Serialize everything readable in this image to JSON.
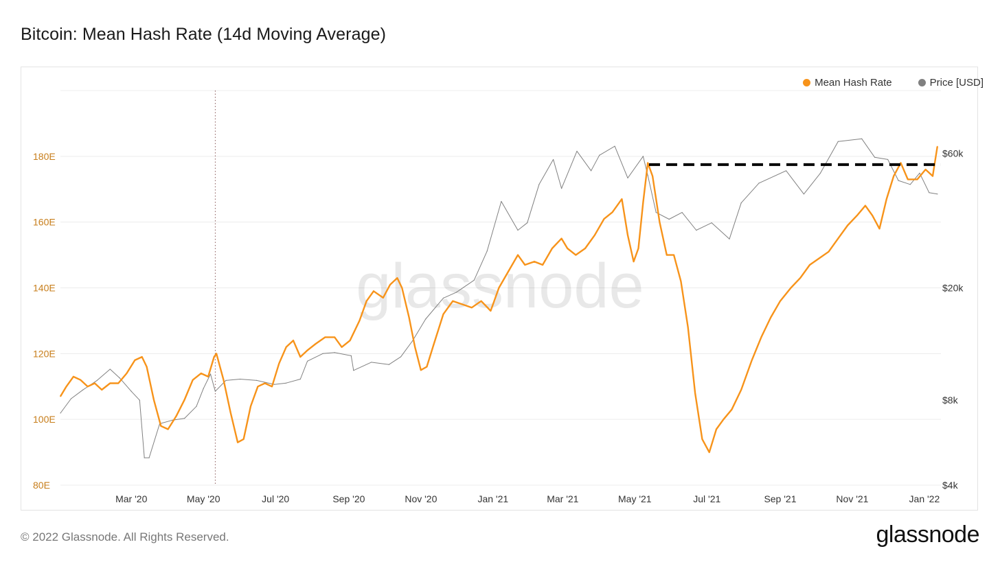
{
  "title": "Bitcoin: Mean Hash Rate (14d Moving Average)",
  "footer": "© 2022 Glassnode. All Rights Reserved.",
  "brand": "glassnode",
  "watermark": "glassnode",
  "colors": {
    "hash": "#f7931a",
    "price": "#808080",
    "left_axis_text": "#c77d1a",
    "grid": "#ececec"
  },
  "legend": [
    {
      "label": "Mean Hash Rate",
      "color": "#f7931a"
    },
    {
      "label": "Price [USD]",
      "color": "#808080"
    }
  ],
  "chart_data": {
    "type": "line",
    "title": "Bitcoin: Mean Hash Rate (14d Moving Average)",
    "legend_position": "top-right",
    "grid": true,
    "x_range": [
      "2020-01-01",
      "2022-01-15"
    ],
    "x_ticks": [
      {
        "date": "2020-03-01",
        "label": "Mar '20"
      },
      {
        "date": "2020-05-01",
        "label": "May '20"
      },
      {
        "date": "2020-07-01",
        "label": "Jul '20"
      },
      {
        "date": "2020-09-01",
        "label": "Sep '20"
      },
      {
        "date": "2020-11-01",
        "label": "Nov '20"
      },
      {
        "date": "2021-01-01",
        "label": "Jan '21"
      },
      {
        "date": "2021-03-01",
        "label": "Mar '21"
      },
      {
        "date": "2021-05-01",
        "label": "May '21"
      },
      {
        "date": "2021-07-01",
        "label": "Jul '21"
      },
      {
        "date": "2021-09-01",
        "label": "Sep '21"
      },
      {
        "date": "2021-11-01",
        "label": "Nov '21"
      },
      {
        "date": "2022-01-01",
        "label": "Jan '22"
      }
    ],
    "y_left": {
      "unit": "E",
      "range": [
        80,
        200
      ],
      "ticks": [
        {
          "value": 80,
          "label": "80E"
        },
        {
          "value": 100,
          "label": "100E"
        },
        {
          "value": 120,
          "label": "120E"
        },
        {
          "value": 140,
          "label": "140E"
        },
        {
          "value": 160,
          "label": "160E"
        },
        {
          "value": 180,
          "label": "180E"
        }
      ]
    },
    "y_right": {
      "scale": "log",
      "range": [
        4000,
        100000
      ],
      "ticks": [
        {
          "value": 4000,
          "label": "$4k"
        },
        {
          "value": 8000,
          "label": "$8k"
        },
        {
          "value": 20000,
          "label": "$20k"
        },
        {
          "value": 60000,
          "label": "$60k"
        }
      ]
    },
    "annotations": [
      {
        "type": "vertical-dotted-line",
        "date": "2020-05-11"
      },
      {
        "type": "horizontal-dashed-line",
        "from": "2021-05-13",
        "to": "2022-01-15",
        "value": 177.5
      }
    ],
    "series": [
      {
        "name": "Mean Hash Rate",
        "axis": "left",
        "points": [
          [
            "2020-01-01",
            107
          ],
          [
            "2020-01-06",
            110
          ],
          [
            "2020-01-12",
            113
          ],
          [
            "2020-01-18",
            112
          ],
          [
            "2020-01-24",
            110
          ],
          [
            "2020-01-30",
            111
          ],
          [
            "2020-02-05",
            109
          ],
          [
            "2020-02-12",
            111
          ],
          [
            "2020-02-19",
            111
          ],
          [
            "2020-02-26",
            114
          ],
          [
            "2020-03-04",
            118
          ],
          [
            "2020-03-10",
            119
          ],
          [
            "2020-03-14",
            116
          ],
          [
            "2020-03-20",
            106
          ],
          [
            "2020-03-26",
            98
          ],
          [
            "2020-04-01",
            97
          ],
          [
            "2020-04-08",
            101
          ],
          [
            "2020-04-15",
            106
          ],
          [
            "2020-04-22",
            112
          ],
          [
            "2020-04-29",
            114
          ],
          [
            "2020-05-05",
            113
          ],
          [
            "2020-05-10",
            119
          ],
          [
            "2020-05-12",
            120
          ],
          [
            "2020-05-18",
            112
          ],
          [
            "2020-05-24",
            102
          ],
          [
            "2020-05-30",
            93
          ],
          [
            "2020-06-04",
            94
          ],
          [
            "2020-06-10",
            104
          ],
          [
            "2020-06-16",
            110
          ],
          [
            "2020-06-22",
            111
          ],
          [
            "2020-06-28",
            110
          ],
          [
            "2020-07-04",
            117
          ],
          [
            "2020-07-10",
            122
          ],
          [
            "2020-07-16",
            124
          ],
          [
            "2020-07-22",
            119
          ],
          [
            "2020-07-28",
            121
          ],
          [
            "2020-08-04",
            123
          ],
          [
            "2020-08-12",
            125
          ],
          [
            "2020-08-20",
            125
          ],
          [
            "2020-08-26",
            122
          ],
          [
            "2020-09-02",
            124
          ],
          [
            "2020-09-10",
            130
          ],
          [
            "2020-09-16",
            136
          ],
          [
            "2020-09-22",
            139
          ],
          [
            "2020-09-30",
            137
          ],
          [
            "2020-10-06",
            141
          ],
          [
            "2020-10-12",
            143
          ],
          [
            "2020-10-16",
            140
          ],
          [
            "2020-10-22",
            131
          ],
          [
            "2020-10-27",
            122
          ],
          [
            "2020-11-01",
            115
          ],
          [
            "2020-11-06",
            116
          ],
          [
            "2020-11-12",
            123
          ],
          [
            "2020-11-20",
            132
          ],
          [
            "2020-11-28",
            136
          ],
          [
            "2020-12-06",
            135
          ],
          [
            "2020-12-14",
            134
          ],
          [
            "2020-12-22",
            136
          ],
          [
            "2020-12-30",
            133
          ],
          [
            "2021-01-06",
            140
          ],
          [
            "2021-01-14",
            145
          ],
          [
            "2021-01-22",
            150
          ],
          [
            "2021-01-28",
            147
          ],
          [
            "2021-02-05",
            148
          ],
          [
            "2021-02-12",
            147
          ],
          [
            "2021-02-20",
            152
          ],
          [
            "2021-02-28",
            155
          ],
          [
            "2021-03-05",
            152
          ],
          [
            "2021-03-12",
            150
          ],
          [
            "2021-03-20",
            152
          ],
          [
            "2021-03-28",
            156
          ],
          [
            "2021-04-05",
            161
          ],
          [
            "2021-04-12",
            163
          ],
          [
            "2021-04-20",
            167
          ],
          [
            "2021-04-25",
            156
          ],
          [
            "2021-04-30",
            148
          ],
          [
            "2021-05-04",
            152
          ],
          [
            "2021-05-08",
            166
          ],
          [
            "2021-05-12",
            178
          ],
          [
            "2021-05-16",
            174
          ],
          [
            "2021-05-22",
            160
          ],
          [
            "2021-05-28",
            150
          ],
          [
            "2021-06-03",
            150
          ],
          [
            "2021-06-09",
            142
          ],
          [
            "2021-06-15",
            128
          ],
          [
            "2021-06-21",
            108
          ],
          [
            "2021-06-27",
            94
          ],
          [
            "2021-07-03",
            90
          ],
          [
            "2021-07-09",
            97
          ],
          [
            "2021-07-15",
            100
          ],
          [
            "2021-07-22",
            103
          ],
          [
            "2021-07-30",
            109
          ],
          [
            "2021-08-08",
            118
          ],
          [
            "2021-08-16",
            125
          ],
          [
            "2021-08-24",
            131
          ],
          [
            "2021-09-01",
            136
          ],
          [
            "2021-09-10",
            140
          ],
          [
            "2021-09-18",
            143
          ],
          [
            "2021-09-26",
            147
          ],
          [
            "2021-10-04",
            149
          ],
          [
            "2021-10-12",
            151
          ],
          [
            "2021-10-20",
            155
          ],
          [
            "2021-10-28",
            159
          ],
          [
            "2021-11-05",
            162
          ],
          [
            "2021-11-12",
            165
          ],
          [
            "2021-11-18",
            162
          ],
          [
            "2021-11-24",
            158
          ],
          [
            "2021-11-30",
            167
          ],
          [
            "2021-12-06",
            174
          ],
          [
            "2021-12-12",
            178
          ],
          [
            "2021-12-18",
            173
          ],
          [
            "2021-12-26",
            173
          ],
          [
            "2022-01-02",
            176
          ],
          [
            "2022-01-08",
            174
          ],
          [
            "2022-01-12",
            183
          ]
        ]
      },
      {
        "name": "Price [USD]",
        "axis": "right",
        "points": [
          [
            "2020-01-01",
            7200
          ],
          [
            "2020-01-10",
            8100
          ],
          [
            "2020-01-20",
            8700
          ],
          [
            "2020-02-01",
            9400
          ],
          [
            "2020-02-12",
            10300
          ],
          [
            "2020-02-20",
            9600
          ],
          [
            "2020-03-01",
            8600
          ],
          [
            "2020-03-08",
            8000
          ],
          [
            "2020-03-12",
            5000
          ],
          [
            "2020-03-16",
            5000
          ],
          [
            "2020-03-25",
            6600
          ],
          [
            "2020-04-05",
            6800
          ],
          [
            "2020-04-15",
            6900
          ],
          [
            "2020-04-25",
            7600
          ],
          [
            "2020-05-01",
            8800
          ],
          [
            "2020-05-07",
            9900
          ],
          [
            "2020-05-11",
            8600
          ],
          [
            "2020-05-20",
            9400
          ],
          [
            "2020-06-01",
            9500
          ],
          [
            "2020-06-15",
            9400
          ],
          [
            "2020-06-30",
            9100
          ],
          [
            "2020-07-10",
            9200
          ],
          [
            "2020-07-22",
            9500
          ],
          [
            "2020-07-28",
            11000
          ],
          [
            "2020-08-10",
            11700
          ],
          [
            "2020-08-20",
            11800
          ],
          [
            "2020-09-03",
            11500
          ],
          [
            "2020-09-05",
            10200
          ],
          [
            "2020-09-20",
            10900
          ],
          [
            "2020-10-05",
            10700
          ],
          [
            "2020-10-15",
            11400
          ],
          [
            "2020-10-25",
            13000
          ],
          [
            "2020-11-05",
            15500
          ],
          [
            "2020-11-20",
            18400
          ],
          [
            "2020-12-01",
            19300
          ],
          [
            "2020-12-16",
            21300
          ],
          [
            "2020-12-27",
            27000
          ],
          [
            "2021-01-08",
            40500
          ],
          [
            "2021-01-22",
            32000
          ],
          [
            "2021-01-30",
            34000
          ],
          [
            "2021-02-09",
            46500
          ],
          [
            "2021-02-21",
            57000
          ],
          [
            "2021-02-28",
            45000
          ],
          [
            "2021-03-13",
            61000
          ],
          [
            "2021-03-25",
            52000
          ],
          [
            "2021-04-01",
            59000
          ],
          [
            "2021-04-14",
            63500
          ],
          [
            "2021-04-25",
            49000
          ],
          [
            "2021-05-08",
            58500
          ],
          [
            "2021-05-12",
            50000
          ],
          [
            "2021-05-19",
            37000
          ],
          [
            "2021-05-30",
            35000
          ],
          [
            "2021-06-10",
            37000
          ],
          [
            "2021-06-22",
            32000
          ],
          [
            "2021-07-05",
            34000
          ],
          [
            "2021-07-20",
            29800
          ],
          [
            "2021-07-30",
            40000
          ],
          [
            "2021-08-14",
            47000
          ],
          [
            "2021-09-06",
            52000
          ],
          [
            "2021-09-21",
            43000
          ],
          [
            "2021-10-05",
            51000
          ],
          [
            "2021-10-20",
            66000
          ],
          [
            "2021-11-09",
            67500
          ],
          [
            "2021-11-20",
            58000
          ],
          [
            "2021-12-01",
            57000
          ],
          [
            "2021-12-10",
            48000
          ],
          [
            "2021-12-20",
            46500
          ],
          [
            "2021-12-28",
            51000
          ],
          [
            "2022-01-05",
            43500
          ],
          [
            "2022-01-12",
            43000
          ]
        ]
      }
    ]
  }
}
